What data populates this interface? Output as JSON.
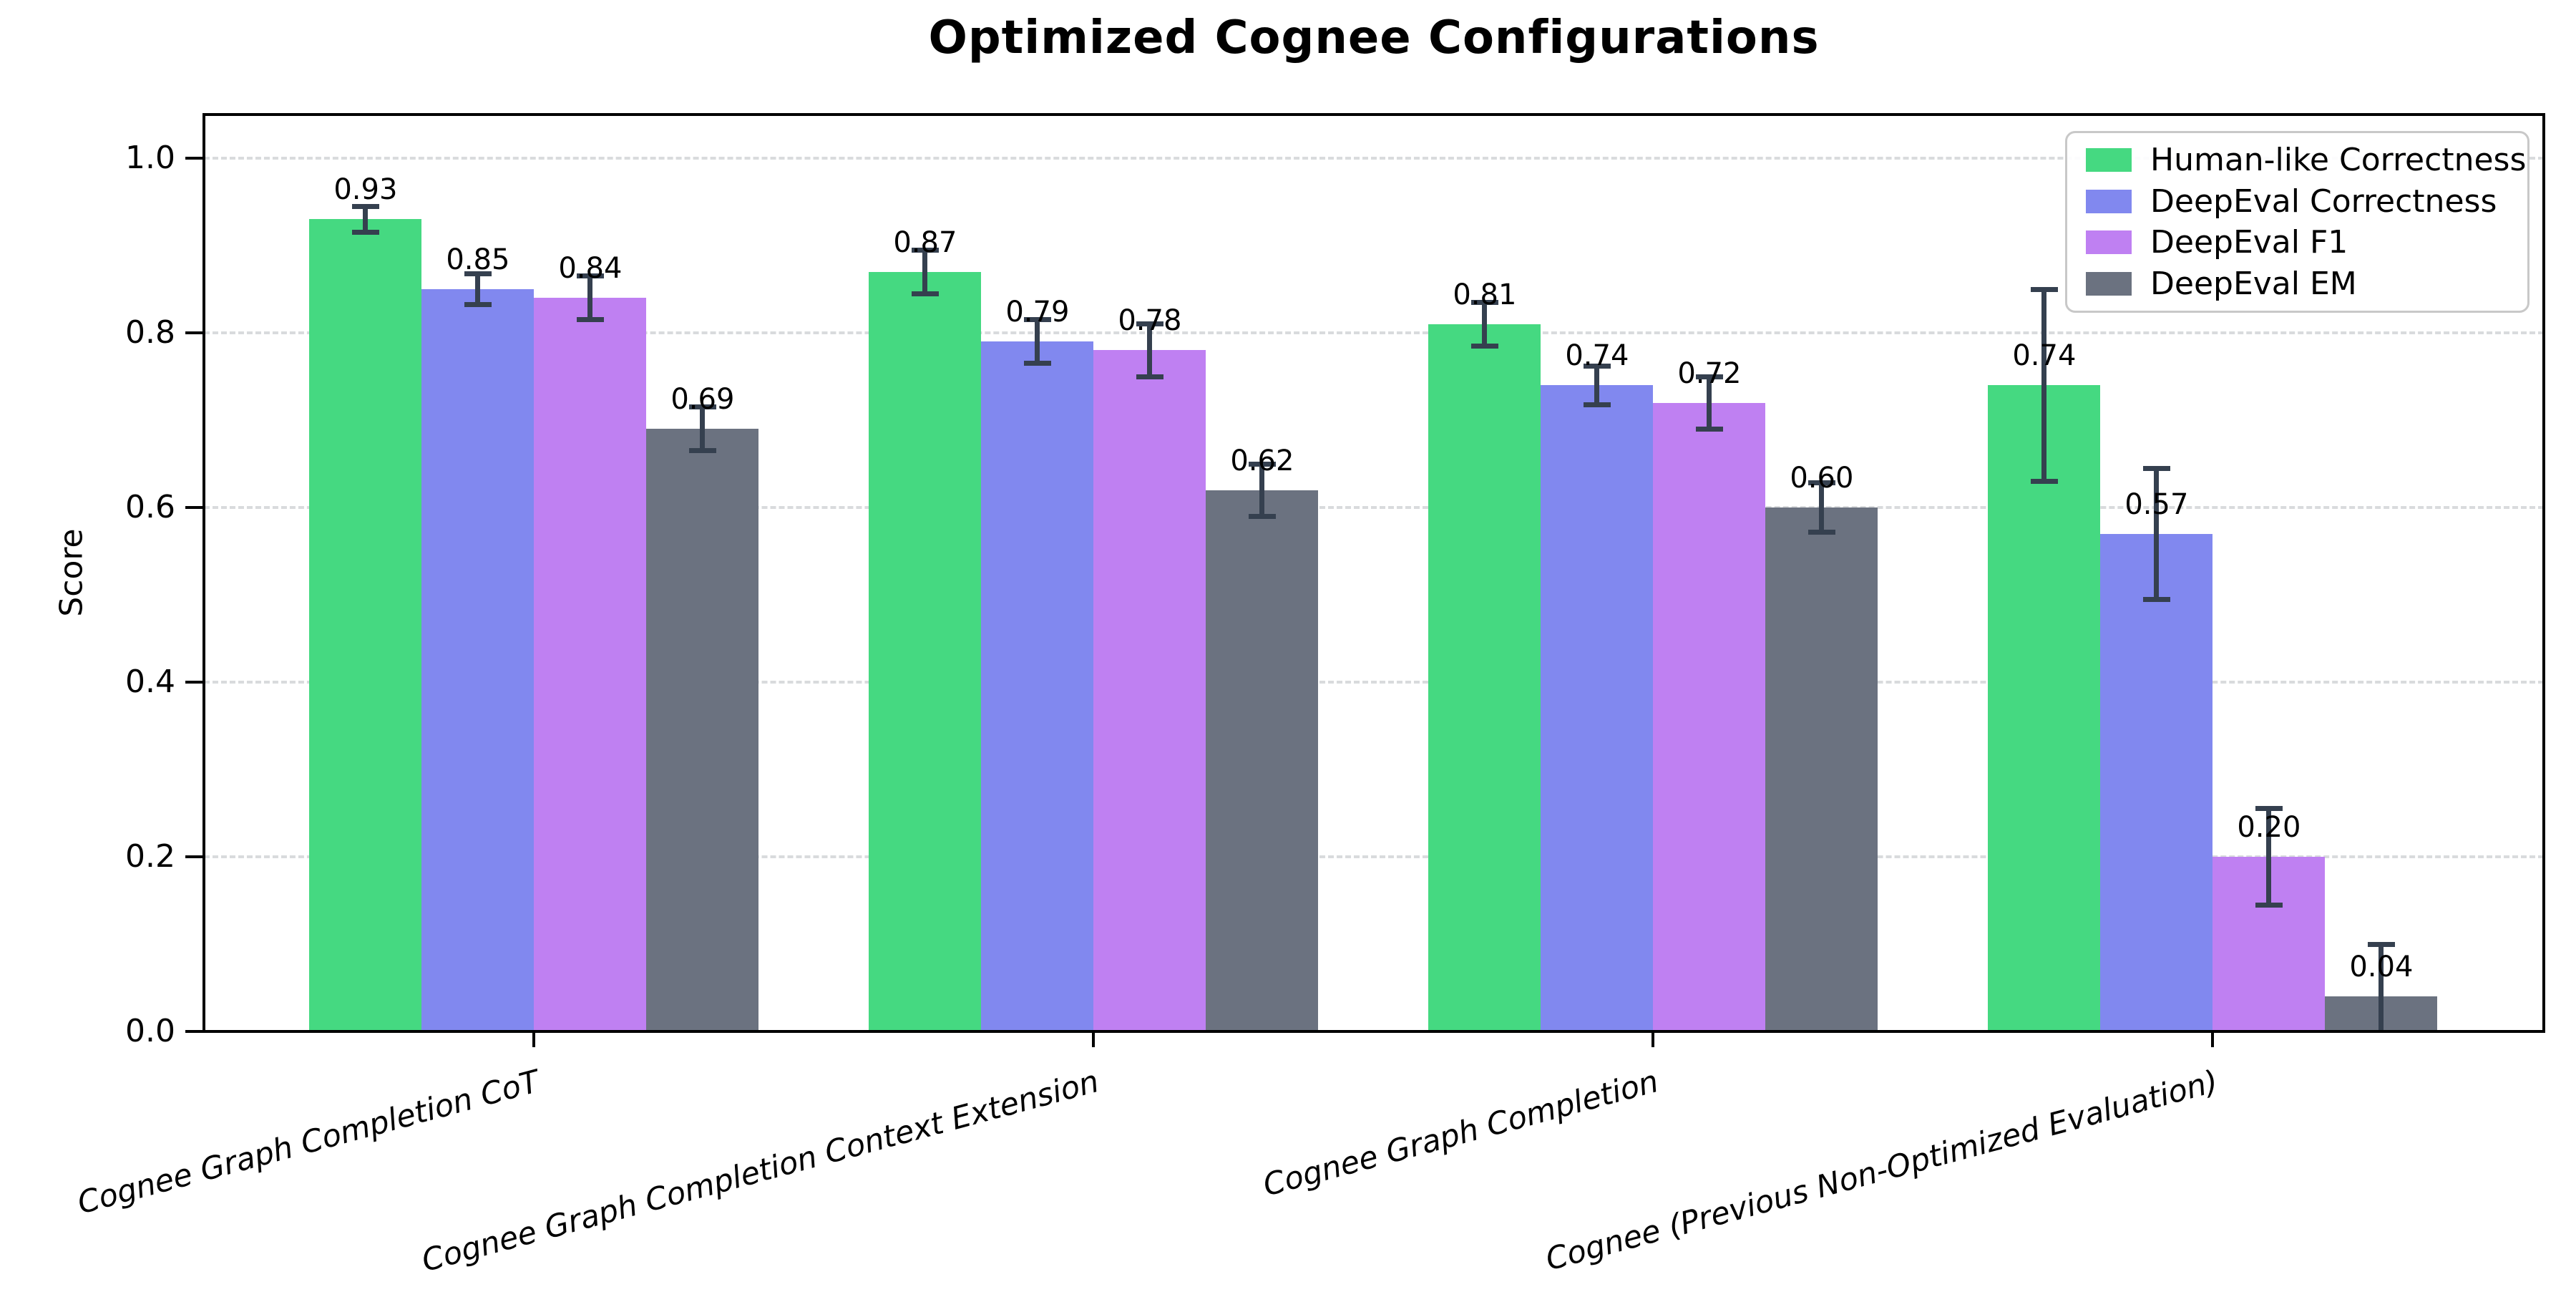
{
  "chart_data": {
    "type": "bar",
    "title": "Optimized Cognee Configurations",
    "ylabel": "Score",
    "categories": [
      "Cognee Graph Completion CoT",
      "Cognee Graph Completion Context Extension",
      "Cognee Graph Completion",
      "Cognee (Previous Non-Optimized Evaluation)"
    ],
    "series": [
      {
        "name": "Human-like Correctness",
        "color": "#45d981",
        "values": [
          0.93,
          0.87,
          0.81,
          0.74
        ],
        "errors": [
          0.015,
          0.025,
          0.025,
          0.11
        ]
      },
      {
        "name": "DeepEval Correctness",
        "color": "#8188ef",
        "values": [
          0.85,
          0.79,
          0.74,
          0.57
        ],
        "errors": [
          0.018,
          0.025,
          0.022,
          0.075
        ]
      },
      {
        "name": "DeepEval F1",
        "color": "#bf80f2",
        "values": [
          0.84,
          0.78,
          0.72,
          0.2
        ],
        "errors": [
          0.025,
          0.03,
          0.03,
          0.055
        ]
      },
      {
        "name": "DeepEval EM",
        "color": "#6b7280",
        "values": [
          0.69,
          0.62,
          0.6,
          0.04
        ],
        "errors": [
          0.025,
          0.03,
          0.028,
          0.06
        ]
      }
    ],
    "value_labels": [
      [
        "0.93",
        "0.87",
        "0.81",
        "0.74"
      ],
      [
        "0.85",
        "0.79",
        "0.74",
        "0.57"
      ],
      [
        "0.84",
        "0.78",
        "0.72",
        "0.20"
      ],
      [
        "0.69",
        "0.62",
        "0.60",
        "0.04"
      ]
    ],
    "yticks": [
      "0.0",
      "0.2",
      "0.4",
      "0.6",
      "0.8",
      "1.0"
    ],
    "ylim": [
      0,
      1.05
    ],
    "grid": "horizontal-dashed",
    "gridline_color": "#d9dbdd",
    "error_bar_color": "#35404f",
    "legend_position": "upper-right",
    "background_color": "#ffffff"
  }
}
